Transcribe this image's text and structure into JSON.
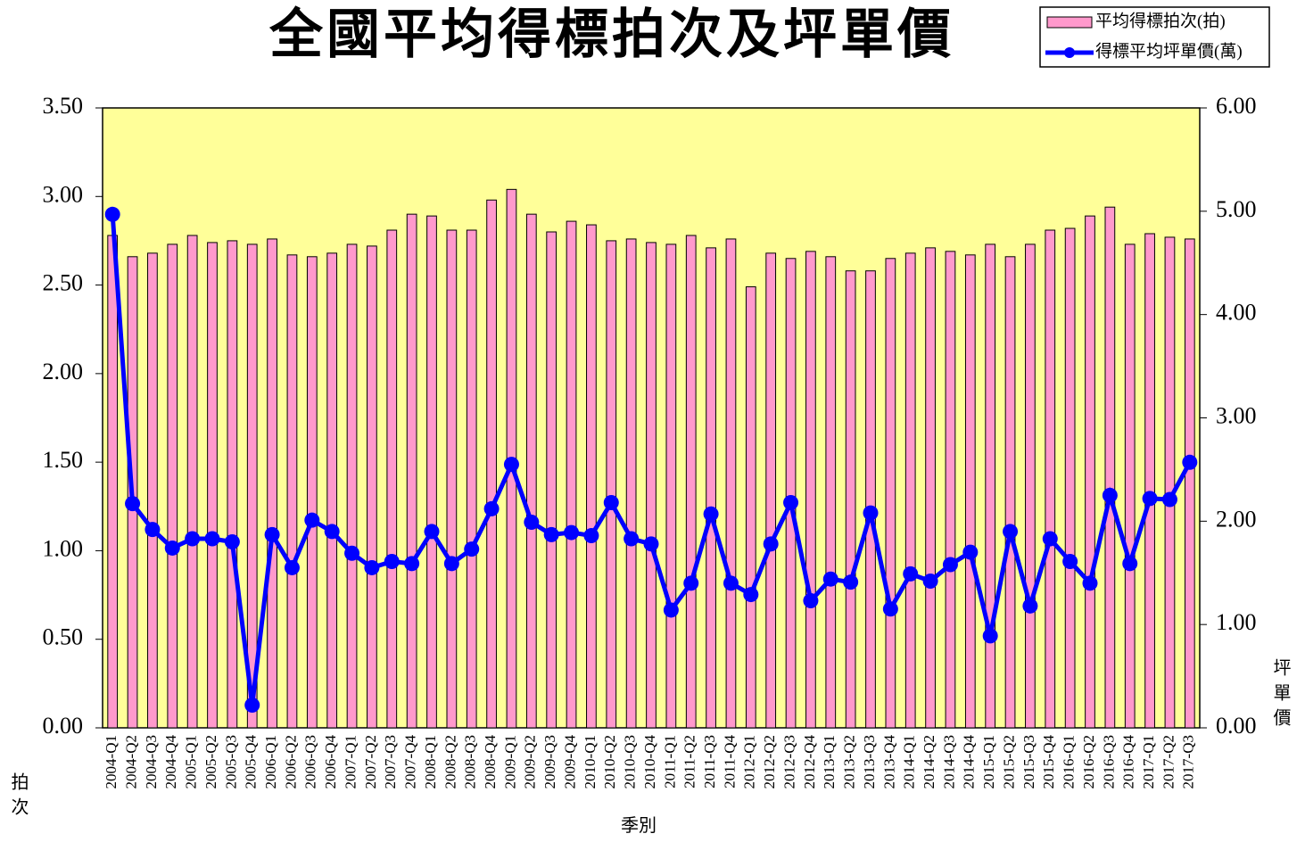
{
  "chart_data": {
    "type": "bar-line",
    "title": "全國平均得標拍次及坪單價",
    "x_label": "季別",
    "y_label": "拍次",
    "y2_label": "坪單價",
    "legend": "top-right",
    "categories": [
      "2004-Q1",
      "2004-Q2",
      "2004-Q3",
      "2004-Q4",
      "2005-Q1",
      "2005-Q2",
      "2005-Q3",
      "2005-Q4",
      "2006-Q1",
      "2006-Q2",
      "2006-Q3",
      "2006-Q4",
      "2007-Q1",
      "2007-Q2",
      "2007-Q3",
      "2007-Q4",
      "2008-Q1",
      "2008-Q2",
      "2008-Q3",
      "2008-Q4",
      "2009-Q1",
      "2009-Q2",
      "2009-Q3",
      "2009-Q4",
      "2010-Q1",
      "2010-Q2",
      "2010-Q3",
      "2010-Q4",
      "2011-Q1",
      "2011-Q2",
      "2011-Q3",
      "2011-Q4",
      "2012-Q1",
      "2012-Q2",
      "2012-Q3",
      "2012-Q4",
      "2013-Q1",
      "2013-Q2",
      "2013-Q3",
      "2013-Q4",
      "2014-Q1",
      "2014-Q2",
      "2014-Q3",
      "2014-Q4",
      "2015-Q1",
      "2015-Q2",
      "2015-Q3",
      "2015-Q4",
      "2016-Q1",
      "2016-Q2",
      "2016-Q3",
      "2016-Q4",
      "2017-Q1",
      "2017-Q2",
      "2017-Q3"
    ],
    "series": [
      {
        "name": "平均得標拍次(拍)",
        "type": "bar",
        "color": "#ff99cc",
        "axis": "y",
        "values": [
          2.78,
          2.66,
          2.68,
          2.73,
          2.78,
          2.74,
          2.75,
          2.73,
          2.76,
          2.67,
          2.66,
          2.68,
          2.73,
          2.72,
          2.81,
          2.9,
          2.89,
          2.81,
          2.81,
          2.98,
          3.04,
          2.9,
          2.8,
          2.86,
          2.84,
          2.75,
          2.76,
          2.74,
          2.73,
          2.78,
          2.71,
          2.76,
          2.49,
          2.68,
          2.65,
          2.69,
          2.66,
          2.58,
          2.58,
          2.65,
          2.68,
          2.71,
          2.69,
          2.67,
          2.73,
          2.66,
          2.73,
          2.81,
          2.82,
          2.89,
          2.94,
          2.73,
          2.79,
          2.77,
          2.76
        ]
      },
      {
        "name": "得標平均坪單價(萬)",
        "type": "line",
        "color": "#0000ff",
        "axis": "y2",
        "values": [
          4.97,
          2.17,
          1.92,
          1.74,
          1.83,
          1.83,
          1.8,
          0.22,
          1.87,
          1.55,
          2.01,
          1.9,
          1.69,
          1.55,
          1.61,
          1.59,
          1.9,
          1.59,
          1.73,
          2.12,
          2.55,
          1.99,
          1.87,
          1.89,
          1.86,
          2.18,
          1.83,
          1.78,
          1.14,
          1.4,
          2.07,
          1.4,
          1.29,
          1.78,
          2.18,
          1.23,
          1.44,
          1.41,
          2.08,
          1.15,
          1.49,
          1.42,
          1.58,
          1.7,
          0.89,
          1.9,
          1.18,
          1.83,
          1.61,
          1.4,
          2.25,
          1.59,
          2.22,
          2.21,
          2.57
        ]
      }
    ],
    "ylim": [
      0,
      3.5
    ],
    "yticks": [
      {
        "value": 0,
        "label": "0.00"
      },
      {
        "value": 0.5,
        "label": "0.50"
      },
      {
        "value": 1,
        "label": "1.00"
      },
      {
        "value": 1.5,
        "label": "1.50"
      },
      {
        "value": 2,
        "label": "2.00"
      },
      {
        "value": 2.5,
        "label": "2.50"
      },
      {
        "value": 3,
        "label": "3.00"
      },
      {
        "value": 3.5,
        "label": "3.50"
      }
    ],
    "y2lim": [
      0,
      6
    ],
    "y2ticks": [
      {
        "value": 0,
        "label": "0.00"
      },
      {
        "value": 1,
        "label": "1.00"
      },
      {
        "value": 2,
        "label": "2.00"
      },
      {
        "value": 3,
        "label": "3.00"
      },
      {
        "value": 4,
        "label": "4.00"
      },
      {
        "value": 5,
        "label": "5.00"
      },
      {
        "value": 6,
        "label": "6.00"
      }
    ],
    "plot_background": "#ffff99"
  }
}
